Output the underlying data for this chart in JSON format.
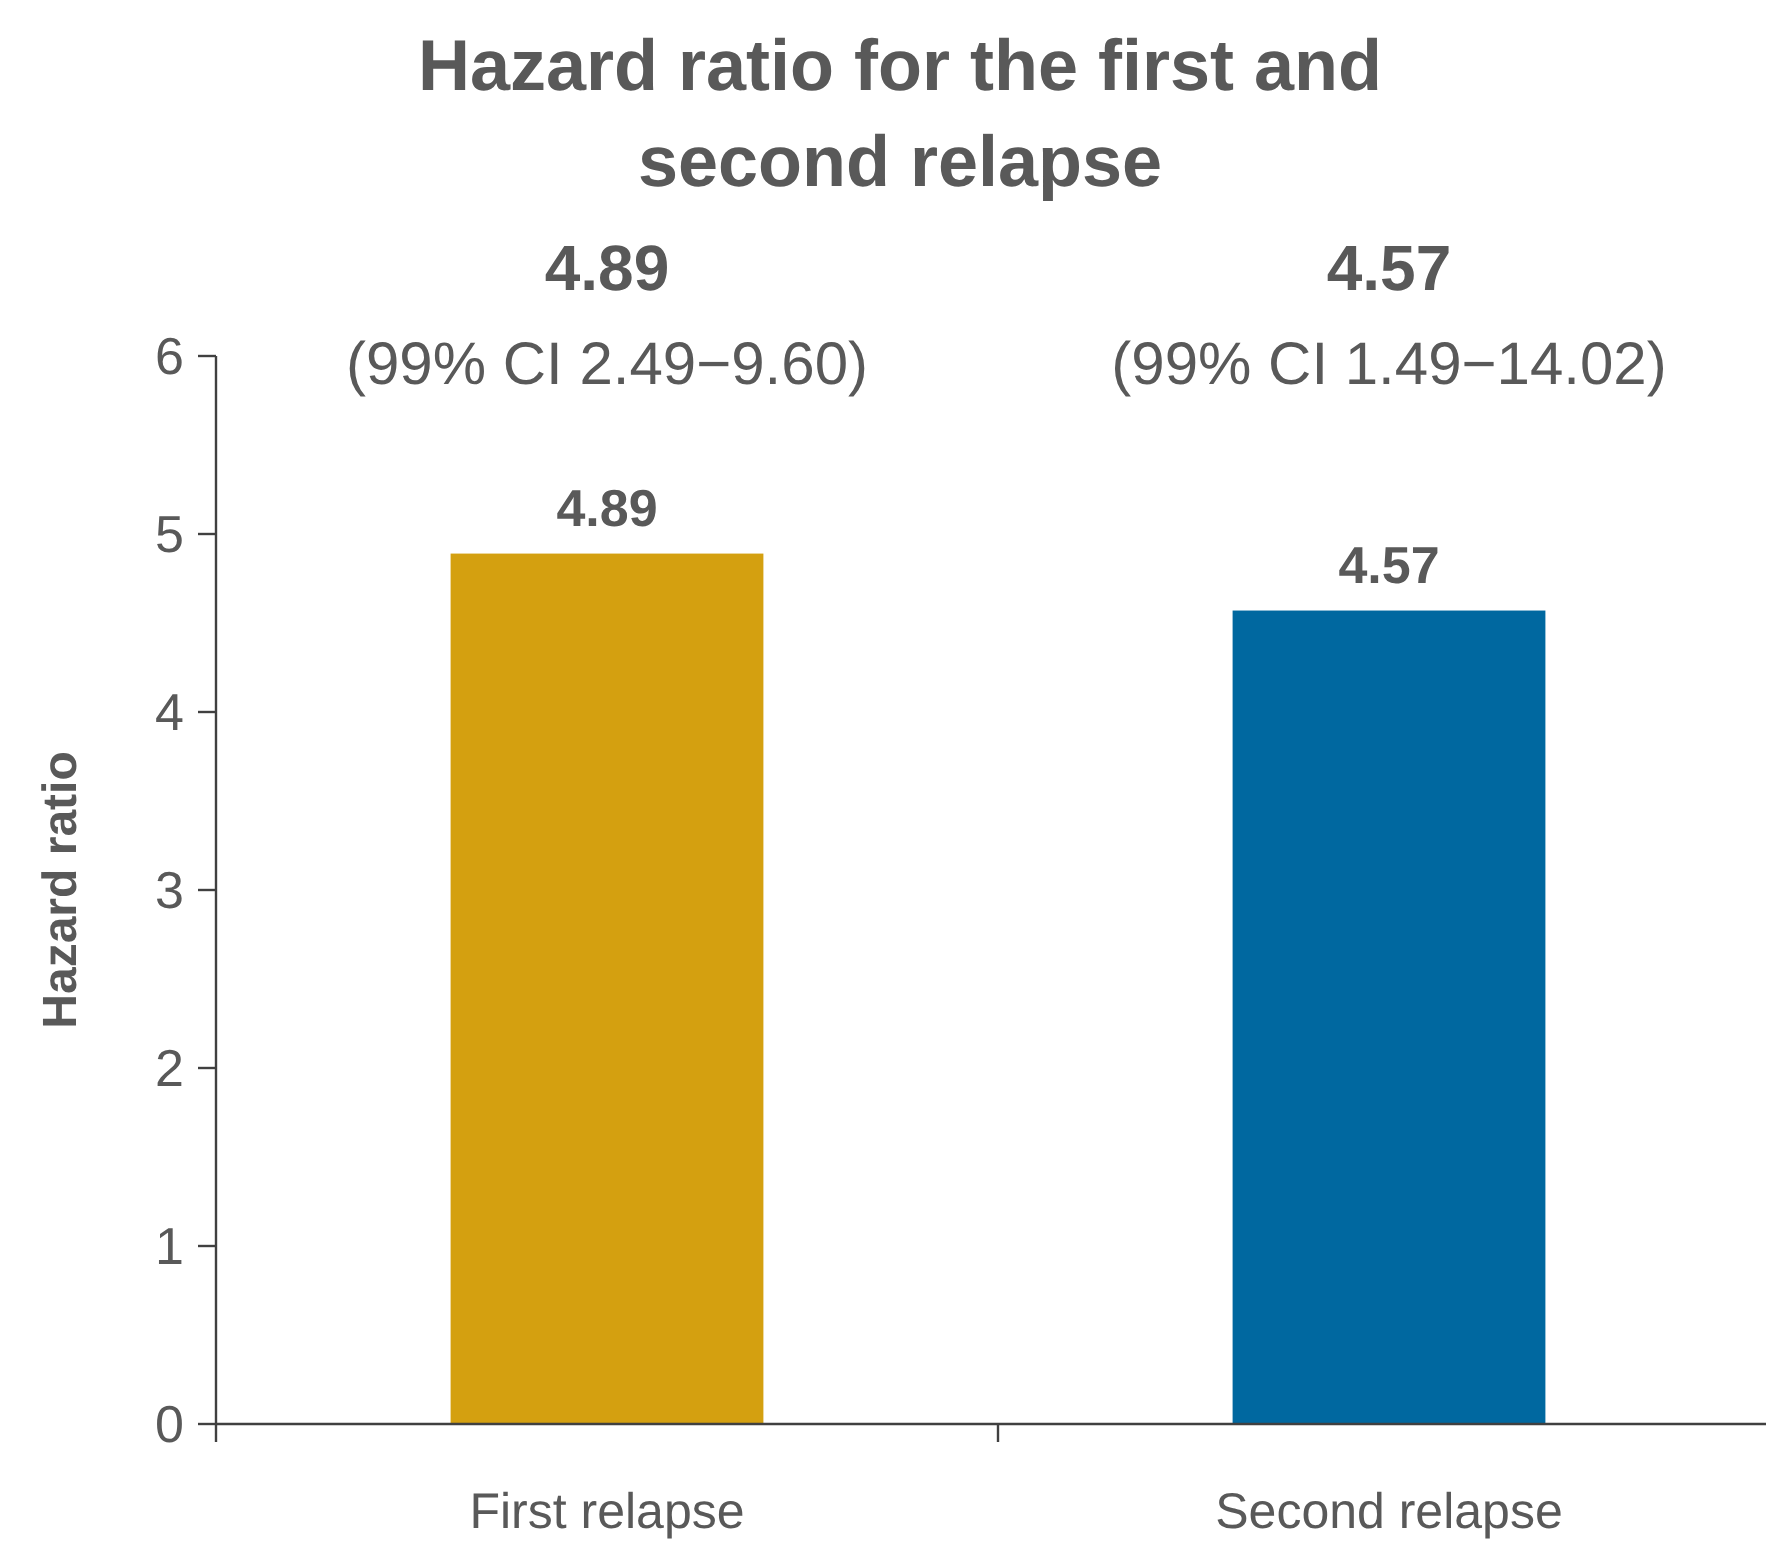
{
  "chart_data": {
    "type": "bar",
    "title": "Hazard ratio for the first and second relapse",
    "ylabel": "Hazard ratio",
    "categories": [
      "First relapse",
      "Second relapse"
    ],
    "values": [
      4.89,
      4.57
    ],
    "colors": [
      "#d4a010",
      "#0068a0"
    ],
    "ylim": [
      0,
      6
    ],
    "yticks": [
      0,
      1,
      2,
      3,
      4,
      5,
      6
    ],
    "data_labels": true,
    "annotations": [
      "4.89",
      "(99% CI 2.49−9.60)",
      "4.57",
      "(99% CI 1.49−14.02)"
    ]
  }
}
